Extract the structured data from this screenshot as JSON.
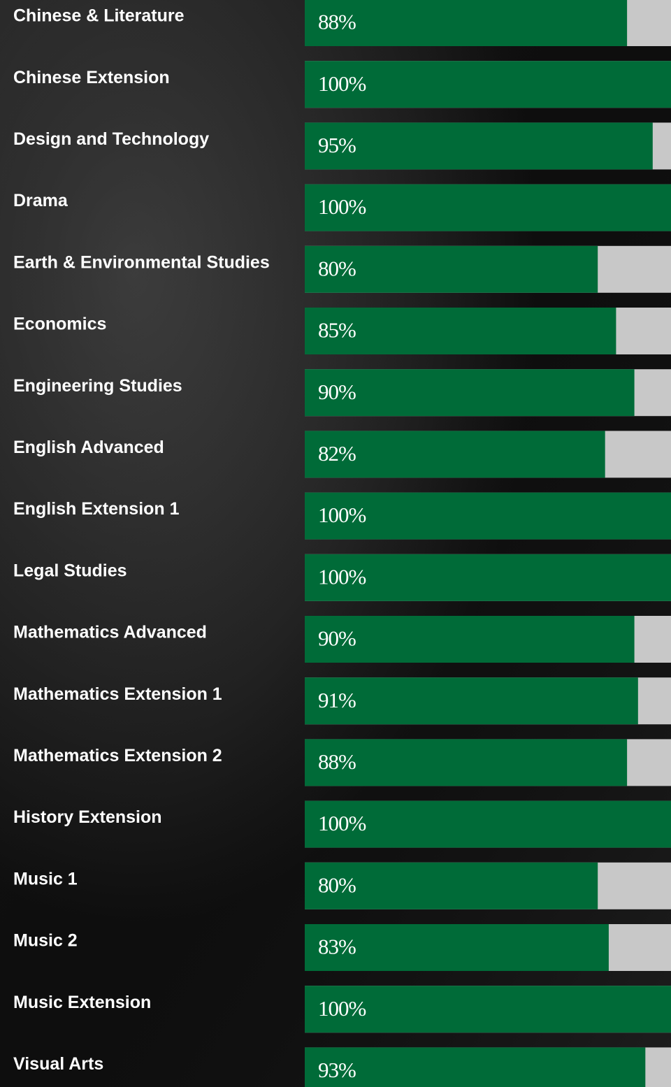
{
  "chart_data": {
    "type": "bar",
    "orientation": "horizontal",
    "categories": [
      "Chinese & Literature",
      "Chinese Extension",
      "Design and Technology",
      "Drama",
      "Earth & Environmental Studies",
      "Economics",
      "Engineering Studies",
      "English Advanced",
      "English Extension 1",
      "Legal Studies",
      "Mathematics Advanced",
      "Mathematics Extension 1",
      "Mathematics Extension 2",
      "History Extension",
      "Music 1",
      "Music 2",
      "Music Extension",
      "Visual Arts"
    ],
    "values": [
      88,
      100,
      95,
      100,
      80,
      85,
      90,
      82,
      100,
      100,
      90,
      91,
      88,
      100,
      80,
      83,
      100,
      93
    ],
    "value_labels": [
      "88%",
      "100%",
      "95%",
      "100%",
      "80%",
      "85%",
      "90%",
      "82%",
      "100%",
      "100%",
      "90%",
      "91%",
      "88%",
      "100%",
      "80%",
      "83%",
      "100%",
      "93%"
    ],
    "xlim": [
      0,
      100
    ],
    "color": "#006b38",
    "track_color": "#c8c8c8"
  }
}
